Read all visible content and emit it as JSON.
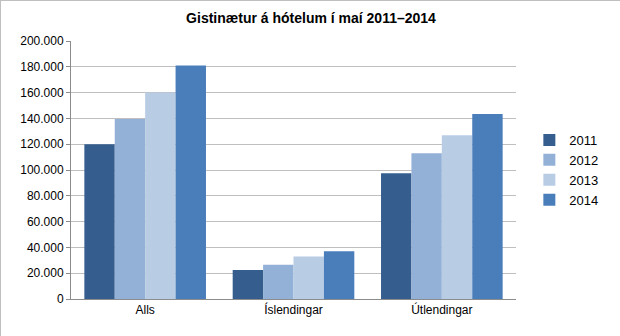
{
  "chart_data": {
    "type": "bar",
    "title": "Gistinætur á hótelum í maí 2011–2014",
    "categories": [
      "Alls",
      "Íslendingar",
      "Útlendingar"
    ],
    "series": [
      {
        "name": "2011",
        "color": "#355e8f",
        "values": [
          120000,
          22500,
          97500
        ]
      },
      {
        "name": "2012",
        "color": "#93b1d6",
        "values": [
          139500,
          26500,
          113000
        ]
      },
      {
        "name": "2013",
        "color": "#b8cce4",
        "values": [
          160000,
          33000,
          127000
        ]
      },
      {
        "name": "2014",
        "color": "#4a7ebb",
        "values": [
          181000,
          37000,
          143500
        ]
      }
    ],
    "ylim": [
      0,
      200000
    ],
    "yticks": [
      0,
      {
        "value": 20000,
        "label": "20.000"
      },
      {
        "value": 40000,
        "label": "40.000"
      },
      {
        "value": 60000,
        "label": "60.000"
      },
      {
        "value": 80000,
        "label": "80.000"
      },
      {
        "value": 100000,
        "label": "100.000"
      },
      {
        "value": 120000,
        "label": "120.000"
      },
      {
        "value": 140000,
        "label": "140.000"
      },
      {
        "value": 160000,
        "label": "160.000"
      },
      {
        "value": 180000,
        "label": "180.000"
      },
      {
        "value": 200000,
        "label": "200.000"
      }
    ],
    "grid": true,
    "legend": "right"
  }
}
